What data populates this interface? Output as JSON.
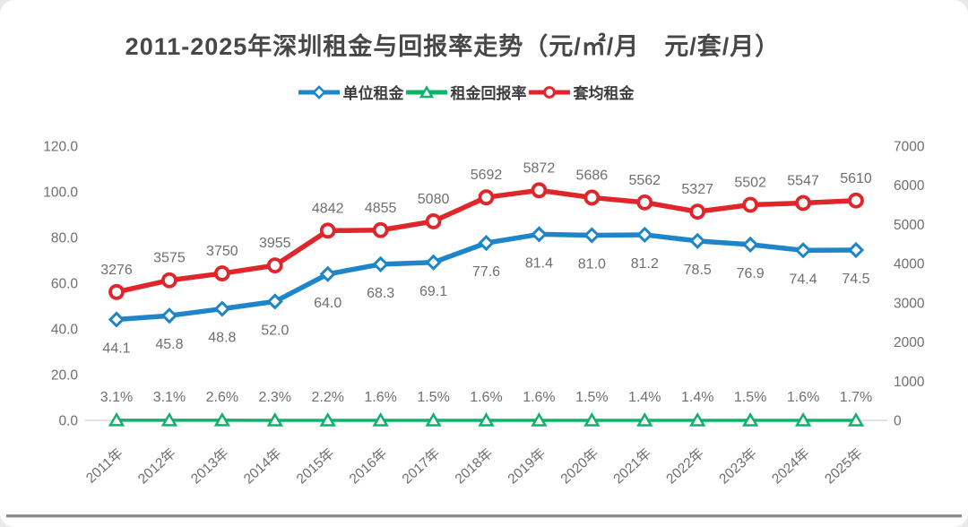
{
  "title": "2011-2025年深圳租金与回报率走势（元/㎡/月　元/套/月）",
  "legend": {
    "items": [
      {
        "key": "unit-rent",
        "label": "单位租金",
        "marker": "diamond",
        "color": "#1E86C8"
      },
      {
        "key": "return-rate",
        "label": "租金回报率",
        "marker": "triangle",
        "color": "#0FB26B"
      },
      {
        "key": "avg-rent",
        "label": "套均租金",
        "marker": "circle",
        "color": "#E0252B"
      }
    ]
  },
  "chart_data": {
    "type": "line",
    "title": "2011-2025年深圳租金与回报率走势（元/㎡/月　元/套/月）",
    "categories": [
      "2011年",
      "2012年",
      "2013年",
      "2014年",
      "2015年",
      "2016年",
      "2017年",
      "2018年",
      "2019年",
      "2020年",
      "2021年",
      "2022年",
      "2023年",
      "2024年",
      "2025年"
    ],
    "series": [
      {
        "key": "unit-rent",
        "name": "单位租金",
        "axis": "left",
        "unit": "元/㎡/月",
        "color": "#1E86C8",
        "marker": "diamond",
        "label_position": "below",
        "values": [
          44.1,
          45.8,
          48.8,
          52.0,
          64.0,
          68.3,
          69.1,
          77.6,
          81.4,
          81.0,
          81.2,
          78.5,
          76.9,
          74.4,
          74.5
        ],
        "labels": [
          "44.1",
          "45.8",
          "48.8",
          "52.0",
          "64.0",
          "68.3",
          "69.1",
          "77.6",
          "81.4",
          "81.0",
          "81.2",
          "78.5",
          "76.9",
          "74.4",
          "74.5"
        ]
      },
      {
        "key": "return-rate",
        "name": "租金回报率",
        "axis": "left",
        "unit": "percent",
        "color": "#0FB26B",
        "marker": "triangle",
        "label_position": "above",
        "values": [
          3.1,
          3.1,
          2.6,
          2.3,
          2.2,
          1.6,
          1.5,
          1.6,
          1.6,
          1.5,
          1.4,
          1.4,
          1.5,
          1.6,
          1.7
        ],
        "labels": [
          "3.1%",
          "3.1%",
          "2.6%",
          "2.3%",
          "2.2%",
          "1.6%",
          "1.5%",
          "1.6%",
          "1.6%",
          "1.5%",
          "1.4%",
          "1.4%",
          "1.5%",
          "1.6%",
          "1.7%"
        ]
      },
      {
        "key": "avg-rent",
        "name": "套均租金",
        "axis": "right",
        "unit": "元/套/月",
        "color": "#E0252B",
        "marker": "circle",
        "label_position": "above",
        "values": [
          3276,
          3575,
          3750,
          3955,
          4842,
          4855,
          5080,
          5692,
          5872,
          5686,
          5562,
          5327,
          5502,
          5547,
          5610
        ],
        "labels": [
          "3276",
          "3575",
          "3750",
          "3955",
          "4842",
          "4855",
          "5080",
          "5692",
          "5872",
          "5686",
          "5562",
          "5327",
          "5502",
          "5547",
          "5610"
        ]
      }
    ],
    "left_axis": {
      "min": 0,
      "max": 120,
      "ticks": [
        "0.0",
        "20.0",
        "40.0",
        "60.0",
        "80.0",
        "100.0",
        "120.0"
      ]
    },
    "right_axis": {
      "min": 0,
      "max": 7000,
      "ticks": [
        "0",
        "1000",
        "2000",
        "3000",
        "4000",
        "5000",
        "6000",
        "7000"
      ]
    },
    "grid": "zero-line-only",
    "legend_position": "top-center",
    "colors": {
      "axis_text": "#6f6f6f",
      "data_label_text": "#6f6f6f",
      "zero_line": "#d9d9d9",
      "title_text": "#474747"
    }
  }
}
